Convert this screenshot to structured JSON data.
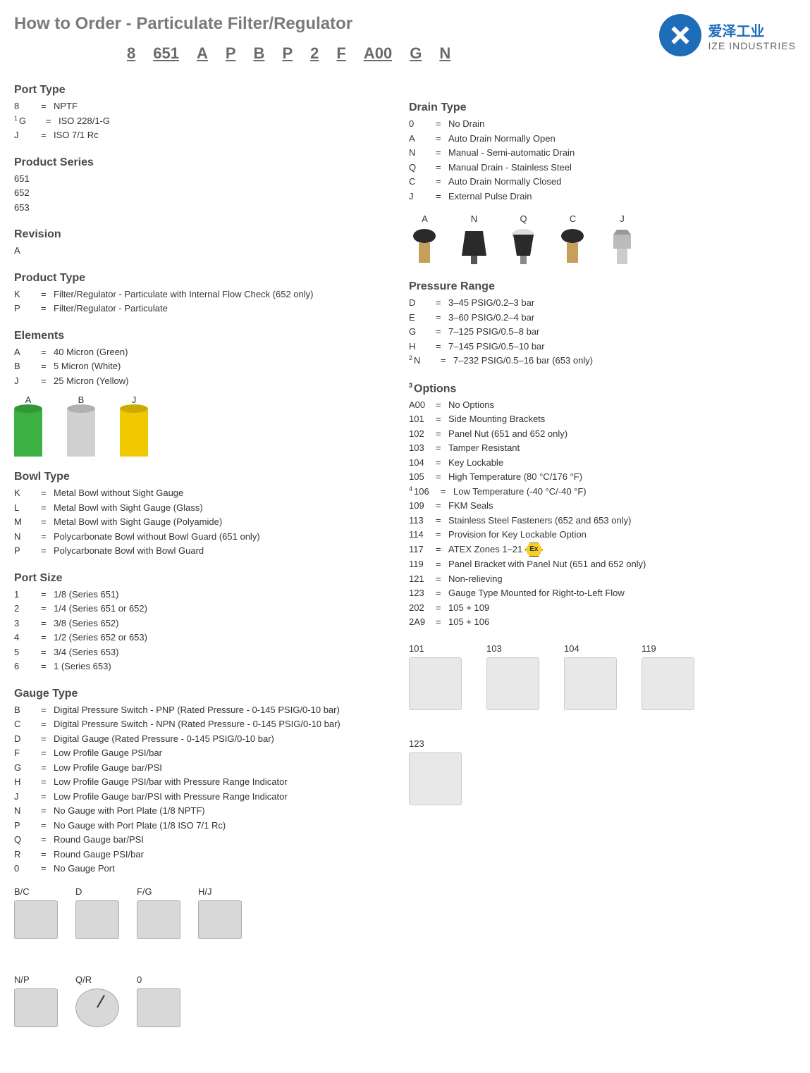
{
  "title": "How to Order - Particulate Filter/Regulator",
  "logo": {
    "cn": "爱泽工业",
    "en": "IZE INDUSTRIES"
  },
  "order_code": [
    "8",
    "651",
    "A",
    "P",
    "B",
    "P",
    "2",
    "F",
    "A00",
    "G",
    "N"
  ],
  "port_type": {
    "title": "Port Type",
    "rows": [
      {
        "code": "8",
        "desc": "NPTF"
      },
      {
        "code": "G",
        "desc": "ISO 228/1-G",
        "fn": "1"
      },
      {
        "code": "J",
        "desc": "ISO 7/1 Rc"
      }
    ]
  },
  "product_series": {
    "title": "Product Series",
    "rows": [
      {
        "code": "651",
        "desc": ""
      },
      {
        "code": "652",
        "desc": ""
      },
      {
        "code": "653",
        "desc": ""
      }
    ]
  },
  "revision": {
    "title": "Revision",
    "rows": [
      {
        "code": "A",
        "desc": ""
      }
    ]
  },
  "product_type": {
    "title": "Product Type",
    "rows": [
      {
        "code": "K",
        "desc": "Filter/Regulator - Particulate with Internal Flow Check (652 only)"
      },
      {
        "code": "P",
        "desc": "Filter/Regulator - Particulate"
      }
    ]
  },
  "elements": {
    "title": "Elements",
    "rows": [
      {
        "code": "A",
        "desc": "40 Micron (Green)"
      },
      {
        "code": "B",
        "desc": "5 Micron (White)"
      },
      {
        "code": "J",
        "desc": "25 Micron (Yellow)"
      }
    ],
    "cylinders": [
      {
        "label": "A",
        "color": "green"
      },
      {
        "label": "B",
        "color": "white"
      },
      {
        "label": "J",
        "color": "yellow"
      }
    ]
  },
  "bowl_type": {
    "title": "Bowl Type",
    "rows": [
      {
        "code": "K",
        "desc": "Metal Bowl without Sight Gauge"
      },
      {
        "code": "L",
        "desc": "Metal Bowl with Sight Gauge (Glass)"
      },
      {
        "code": "M",
        "desc": "Metal Bowl with Sight Gauge (Polyamide)"
      },
      {
        "code": "N",
        "desc": "Polycarbonate Bowl without Bowl Guard (651 only)"
      },
      {
        "code": "P",
        "desc": "Polycarbonate Bowl with Bowl Guard"
      }
    ]
  },
  "port_size": {
    "title": "Port Size",
    "rows": [
      {
        "code": "1",
        "desc": "1/8 (Series 651)"
      },
      {
        "code": "2",
        "desc": "1/4 (Series 651 or 652)"
      },
      {
        "code": "3",
        "desc": "3/8 (Series 652)"
      },
      {
        "code": "4",
        "desc": "1/2 (Series 652 or 653)"
      },
      {
        "code": "5",
        "desc": "3/4 (Series 653)"
      },
      {
        "code": "6",
        "desc": "1 (Series 653)"
      }
    ]
  },
  "gauge_type": {
    "title": "Gauge Type",
    "rows": [
      {
        "code": "B",
        "desc": "Digital Pressure Switch - PNP (Rated Pressure - 0-145 PSIG/0-10 bar)"
      },
      {
        "code": "C",
        "desc": "Digital Pressure Switch - NPN (Rated Pressure - 0-145 PSIG/0-10 bar)"
      },
      {
        "code": "D",
        "desc": "Digital Gauge (Rated Pressure - 0-145 PSIG/0-10 bar)"
      },
      {
        "code": "F",
        "desc": "Low Profile Gauge PSI/bar"
      },
      {
        "code": "G",
        "desc": "Low Profile Gauge bar/PSI"
      },
      {
        "code": "H",
        "desc": "Low Profile Gauge PSI/bar with Pressure Range Indicator"
      },
      {
        "code": "J",
        "desc": "Low Profile Gauge bar/PSI with Pressure Range Indicator"
      },
      {
        "code": "N",
        "desc": "No Gauge with Port Plate (1/8 NPTF)"
      },
      {
        "code": "P",
        "desc": "No Gauge with Port Plate (1/8 ISO 7/1 Rc)"
      },
      {
        "code": "Q",
        "desc": "Round Gauge bar/PSI"
      },
      {
        "code": "R",
        "desc": "Round Gauge PSI/bar"
      },
      {
        "code": "0",
        "desc": "No Gauge Port"
      }
    ],
    "images": [
      "B/C",
      "D",
      "F/G",
      "H/J",
      "N/P",
      "Q/R",
      "0"
    ]
  },
  "drain_type": {
    "title": "Drain Type",
    "rows": [
      {
        "code": "0",
        "desc": "No Drain"
      },
      {
        "code": "A",
        "desc": "Auto Drain Normally Open"
      },
      {
        "code": "N",
        "desc": "Manual - Semi-automatic Drain"
      },
      {
        "code": "Q",
        "desc": "Manual Drain - Stainless Steel"
      },
      {
        "code": "C",
        "desc": "Auto Drain Normally Closed"
      },
      {
        "code": "J",
        "desc": "External Pulse Drain"
      }
    ],
    "images": [
      "A",
      "N",
      "Q",
      "C",
      "J"
    ]
  },
  "pressure_range": {
    "title": "Pressure Range",
    "rows": [
      {
        "code": "D",
        "desc": "3–45 PSIG/0.2–3 bar"
      },
      {
        "code": "E",
        "desc": "3–60 PSIG/0.2–4 bar"
      },
      {
        "code": "G",
        "desc": "7–125 PSIG/0.5–8 bar"
      },
      {
        "code": "H",
        "desc": "7–145 PSIG/0.5–10 bar"
      },
      {
        "code": "N",
        "desc": "7–232 PSIG/0.5–16 bar (653 only)",
        "fn": "2"
      }
    ]
  },
  "options": {
    "title": "Options",
    "fn": "3",
    "rows": [
      {
        "code": "A00",
        "desc": "No Options"
      },
      {
        "code": "101",
        "desc": "Side Mounting Brackets"
      },
      {
        "code": "102",
        "desc": "Panel Nut (651 and 652 only)"
      },
      {
        "code": "103",
        "desc": "Tamper Resistant"
      },
      {
        "code": "104",
        "desc": "Key Lockable"
      },
      {
        "code": "105",
        "desc": "High Temperature (80 °C/176 °F)"
      },
      {
        "code": "106",
        "desc": "Low Temperature (-40 °C/-40 °F)",
        "fn": "4"
      },
      {
        "code": "109",
        "desc": "FKM Seals"
      },
      {
        "code": "113",
        "desc": "Stainless Steel Fasteners (652 and 653 only)"
      },
      {
        "code": "114",
        "desc": "Provision for Key Lockable Option"
      },
      {
        "code": "117",
        "desc": "ATEX Zones 1–21",
        "ex": true
      },
      {
        "code": "119",
        "desc": "Panel Bracket with Panel Nut (651 and 652 only)"
      },
      {
        "code": "121",
        "desc": "Non-relieving"
      },
      {
        "code": "123",
        "desc": "Gauge Type Mounted for Right-to-Left Flow"
      },
      {
        "code": "202",
        "desc": "105 + 109"
      },
      {
        "code": "2A9",
        "desc": "105 + 106"
      }
    ],
    "images": [
      "101",
      "103",
      "104",
      "119",
      "123"
    ]
  },
  "colors": {
    "green": "#3cb043",
    "white": "#d0d0d0",
    "yellow": "#f0c800",
    "title_gray": "#7a7a7a",
    "logo_blue": "#1e6db8"
  }
}
